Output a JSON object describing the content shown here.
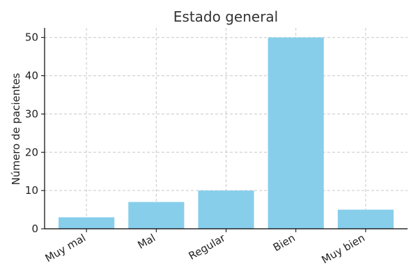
{
  "chart_data": {
    "type": "bar",
    "title": "Estado general",
    "xlabel": "",
    "ylabel": "Número de pacientes",
    "categories": [
      "Muy mal",
      "Mal",
      "Regular",
      "Bien",
      "Muy bien"
    ],
    "values": [
      3,
      7,
      10,
      50,
      5
    ],
    "ylim": [
      0,
      52.5
    ],
    "yticks": [
      0,
      10,
      20,
      30,
      40,
      50
    ],
    "grid": true,
    "bar_color": "#87CEEB"
  }
}
